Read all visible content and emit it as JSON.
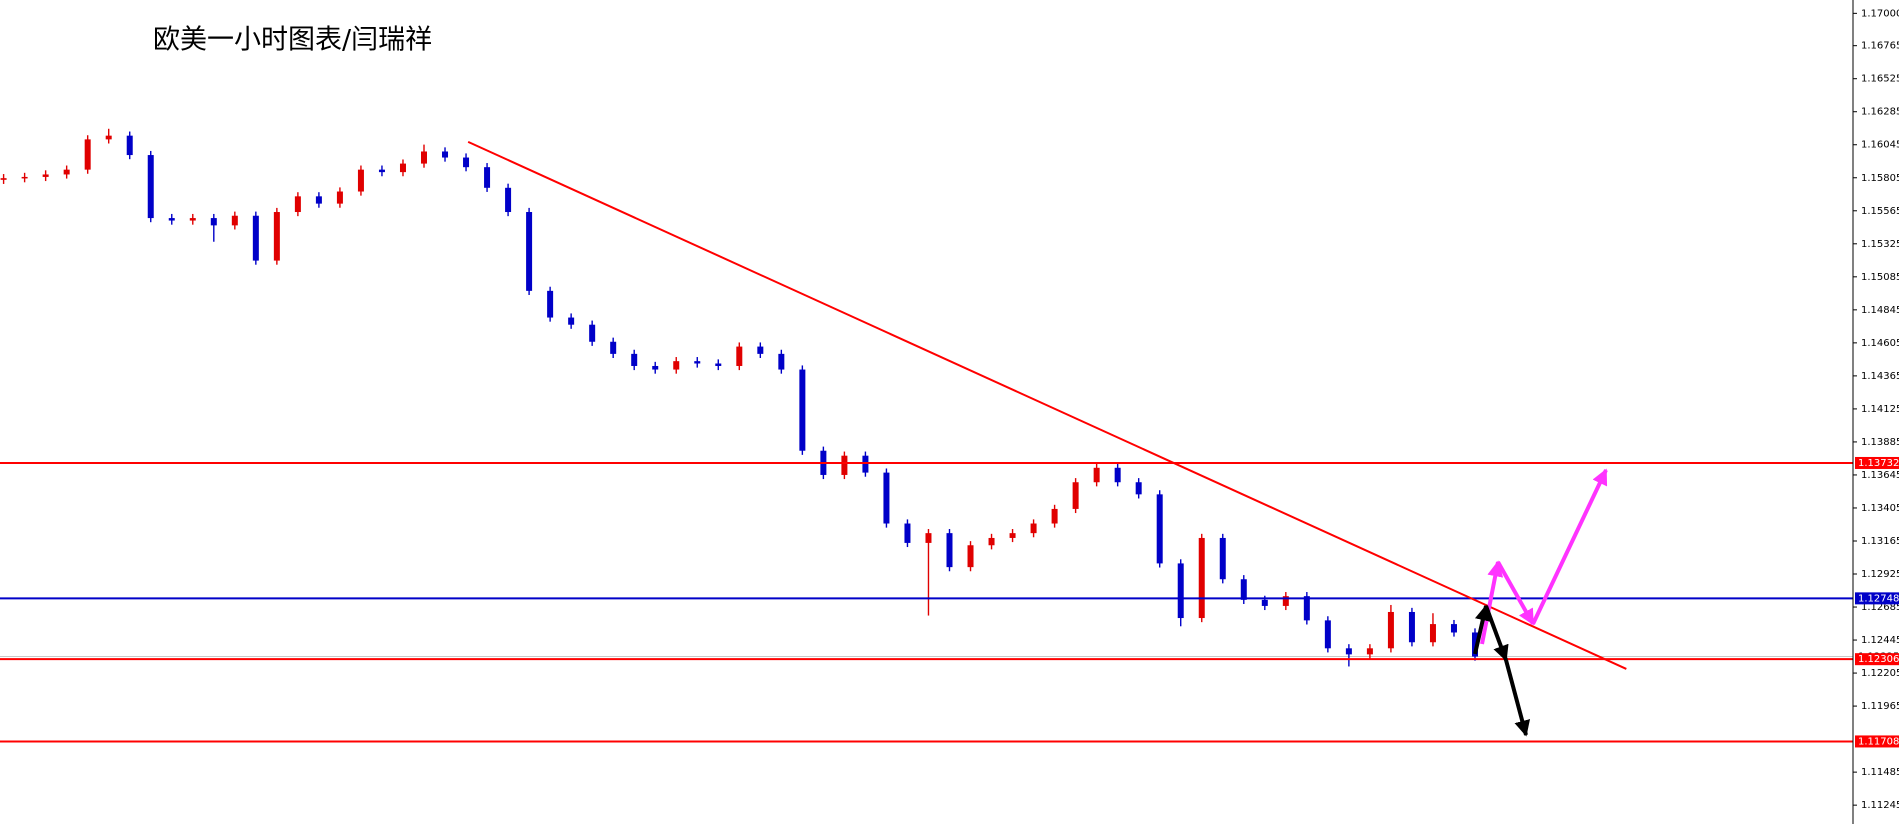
{
  "chart_data": {
    "type": "candlestick",
    "title": "欧美一小时图表/闫瑞祥",
    "ylim": [
      1.11108,
      1.17097
    ],
    "yticks": [
      {
        "value": 1.17,
        "label": "1.17000"
      },
      1.16765,
      1.16525,
      1.16285,
      1.16045,
      1.15805,
      1.15565,
      1.15325,
      1.15085,
      1.14845,
      1.14605,
      1.14365,
      1.14125,
      1.13885,
      1.13645,
      1.13405,
      1.13165,
      1.12925,
      1.12685,
      1.12445,
      1.12205,
      1.11965,
      1.11485,
      1.11245
    ],
    "up_color": "#e00000",
    "down_color": "#0000c8",
    "open": [
      1.1579,
      1.15802,
      1.15811,
      1.15829,
      1.15864,
      1.16084,
      1.16111,
      1.1597,
      1.15512,
      1.15494,
      1.15512,
      1.15459,
      1.15529,
      1.15203,
      1.15556,
      1.1567,
      1.15617,
      1.15705,
      1.15864,
      1.15846,
      1.15908,
      1.15996,
      1.15952,
      1.15882,
      1.15732,
      1.15556,
      1.14983,
      1.14789,
      1.14737,
      1.14613,
      1.14525,
      1.14437,
      1.14411,
      1.14472,
      1.14455,
      1.14437,
      1.14578,
      1.14525,
      1.14411,
      1.13821,
      1.13645,
      1.13785,
      1.13662,
      1.13292,
      1.13151,
      1.13222,
      1.12975,
      1.13134,
      1.13187,
      1.13222,
      1.13292,
      1.13398,
      1.13592,
      1.13697,
      1.13592,
      1.13504,
      1.13002,
      1.12605,
      1.13187,
      1.12887,
      1.12737,
      1.12693,
      1.12764,
      1.12588,
      1.12385,
      1.12341,
      1.12385,
      1.12649,
      1.12429,
      1.12561,
      1.125
    ],
    "high": [
      1.15832,
      1.15841,
      1.15859,
      1.15894,
      1.16114,
      1.16161,
      1.16141,
      1.16,
      1.15542,
      1.15542,
      1.15542,
      1.15559,
      1.15559,
      1.15586,
      1.157,
      1.157,
      1.15735,
      1.15894,
      1.15894,
      1.15938,
      1.16046,
      1.16026,
      1.15982,
      1.15912,
      1.15762,
      1.15586,
      1.15013,
      1.14819,
      1.14767,
      1.14643,
      1.14555,
      1.14467,
      1.14502,
      1.14502,
      1.14485,
      1.14608,
      1.14608,
      1.14555,
      1.14441,
      1.13851,
      1.13815,
      1.13815,
      1.13692,
      1.13322,
      1.13252,
      1.13252,
      1.13164,
      1.13217,
      1.13252,
      1.13322,
      1.13428,
      1.13622,
      1.13732,
      1.13727,
      1.13622,
      1.13534,
      1.13032,
      1.13217,
      1.13217,
      1.12917,
      1.12767,
      1.12794,
      1.12794,
      1.12618,
      1.12415,
      1.12415,
      1.127,
      1.12679,
      1.1264,
      1.12591,
      1.1253
    ],
    "low": [
      1.1576,
      1.15772,
      1.15781,
      1.15799,
      1.15834,
      1.16054,
      1.1594,
      1.15482,
      1.15464,
      1.15464,
      1.1534,
      1.15429,
      1.15173,
      1.15173,
      1.15526,
      1.15587,
      1.15587,
      1.15675,
      1.15816,
      1.15816,
      1.15878,
      1.15922,
      1.15852,
      1.15702,
      1.15526,
      1.14953,
      1.14759,
      1.14707,
      1.14583,
      1.14495,
      1.14407,
      1.14381,
      1.14381,
      1.14425,
      1.14407,
      1.14407,
      1.14495,
      1.14381,
      1.13791,
      1.13615,
      1.13615,
      1.13632,
      1.13262,
      1.13121,
      1.12623,
      1.12945,
      1.12945,
      1.13104,
      1.13157,
      1.13192,
      1.13262,
      1.13368,
      1.13562,
      1.13562,
      1.13474,
      1.12972,
      1.12545,
      1.12575,
      1.12857,
      1.12707,
      1.12663,
      1.12663,
      1.12558,
      1.12355,
      1.12253,
      1.12311,
      1.12355,
      1.12399,
      1.12399,
      1.1247,
      1.12295
    ],
    "close": [
      1.15802,
      1.15811,
      1.15829,
      1.15864,
      1.16084,
      1.16111,
      1.1597,
      1.15512,
      1.15494,
      1.15512,
      1.15459,
      1.15529,
      1.15203,
      1.15556,
      1.1567,
      1.15617,
      1.15705,
      1.15864,
      1.15846,
      1.15908,
      1.15996,
      1.15952,
      1.15882,
      1.15732,
      1.15556,
      1.14983,
      1.14789,
      1.14737,
      1.14613,
      1.14525,
      1.14437,
      1.14411,
      1.14472,
      1.14455,
      1.14437,
      1.14578,
      1.14525,
      1.14411,
      1.13821,
      1.13645,
      1.13785,
      1.13662,
      1.13292,
      1.13151,
      1.13222,
      1.12975,
      1.13134,
      1.13187,
      1.13222,
      1.13292,
      1.13398,
      1.13592,
      1.13697,
      1.13592,
      1.13504,
      1.13002,
      1.12605,
      1.13187,
      1.12887,
      1.12737,
      1.12693,
      1.12764,
      1.12588,
      1.12385,
      1.12341,
      1.12385,
      1.12649,
      1.12429,
      1.12561,
      1.125,
      1.12325
    ],
    "levels": [
      {
        "value": 1.13732,
        "color": "#ff0000"
      },
      {
        "value": 1.12748,
        "color": "#0000c8"
      },
      {
        "value": 1.12306,
        "color": "#ff0000"
      },
      {
        "value": 1.11708,
        "color": "#ff0000"
      }
    ],
    "current_price": 1.12325,
    "trendline": {
      "start": [
        22.1,
        1.16066
      ],
      "end": [
        77.2,
        1.12235
      ],
      "color": "#ff0000"
    }
  }
}
